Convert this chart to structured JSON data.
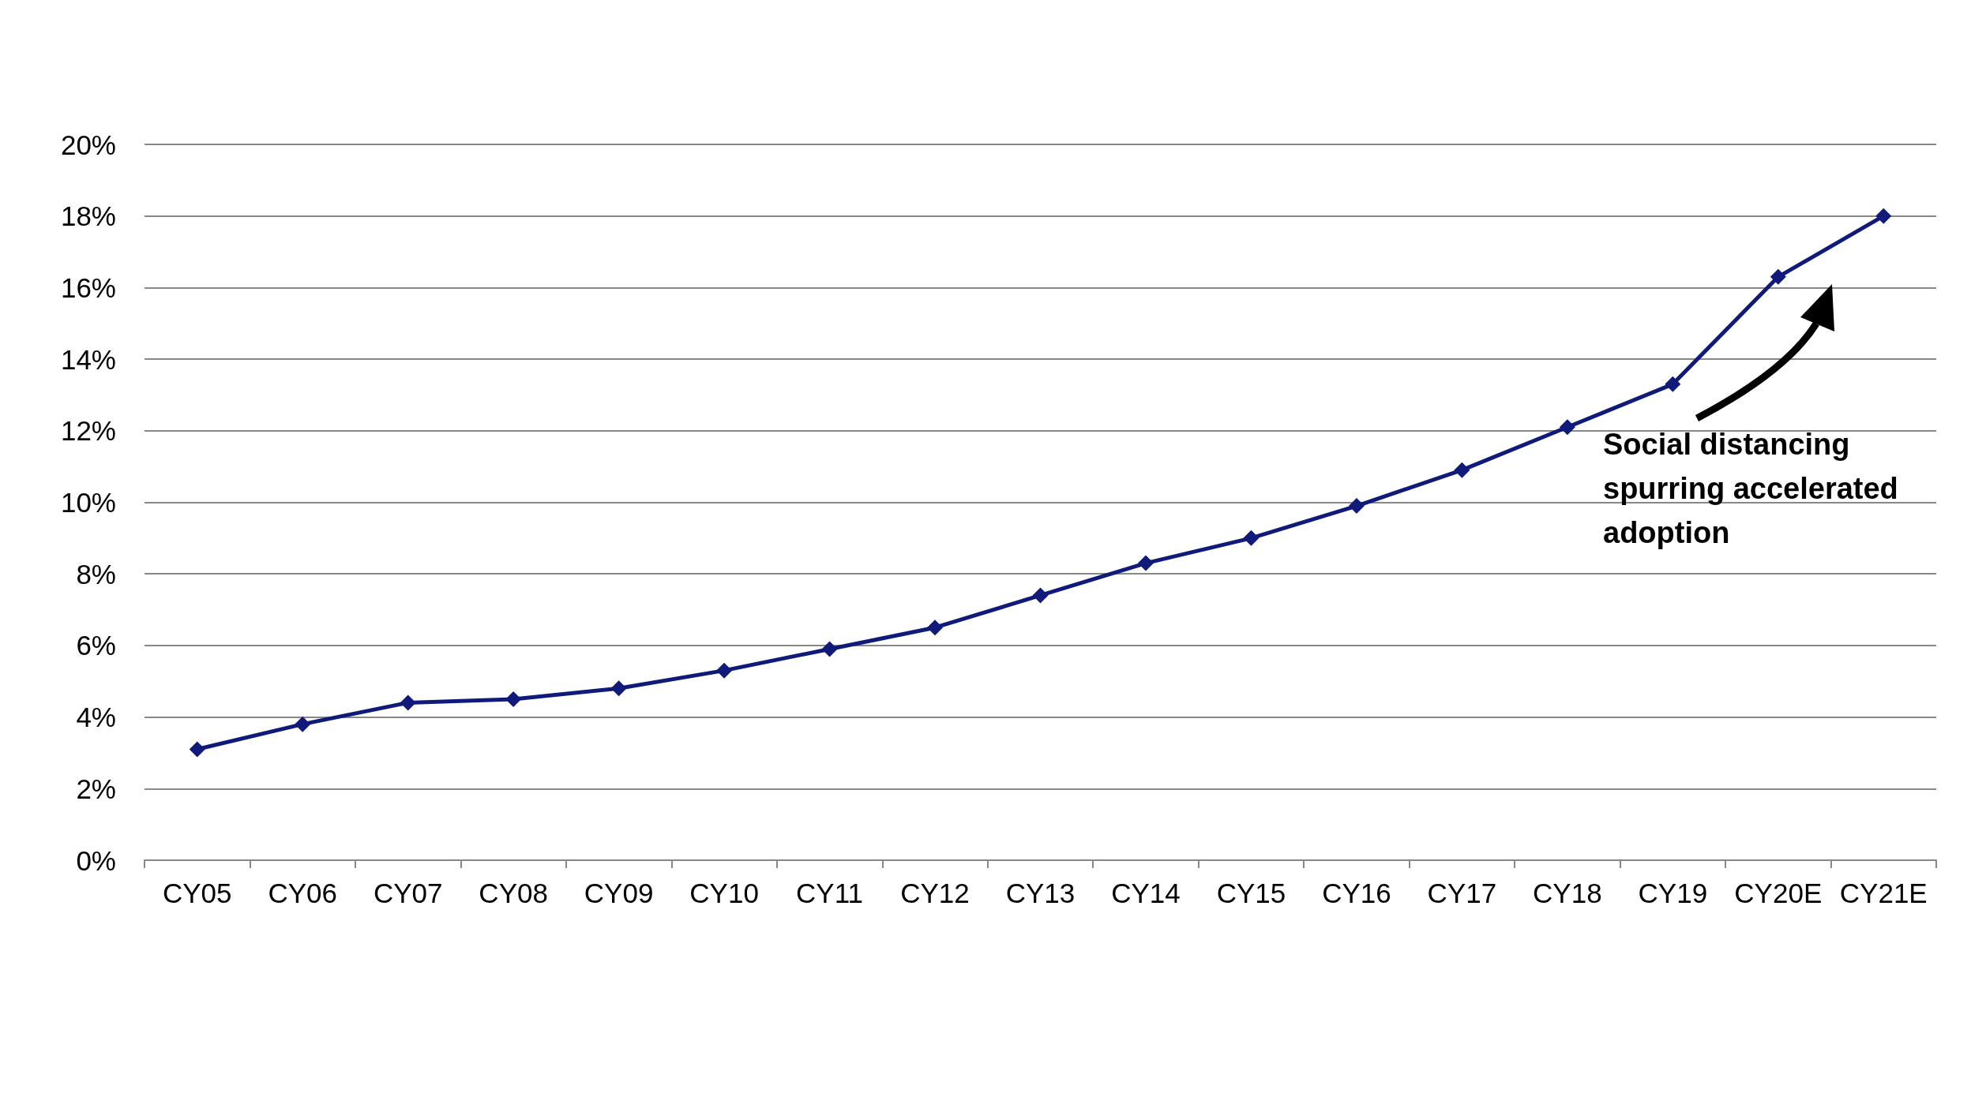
{
  "chart_data": {
    "type": "line",
    "categories": [
      "CY05",
      "CY06",
      "CY07",
      "CY08",
      "CY09",
      "CY10",
      "CY11",
      "CY12",
      "CY13",
      "CY14",
      "CY15",
      "CY16",
      "CY17",
      "CY18",
      "CY19",
      "CY20E",
      "CY21E"
    ],
    "series": [
      {
        "color": "#0f1a7a",
        "values": [
          3.1,
          3.8,
          4.4,
          4.5,
          4.8,
          5.3,
          5.9,
          6.5,
          7.4,
          8.3,
          9.0,
          9.9,
          10.9,
          12.1,
          13.3,
          16.3,
          18.0
        ]
      }
    ],
    "ylim": [
      0,
      20
    ],
    "yticks": [
      {
        "value": 0,
        "label": "0%"
      },
      {
        "value": 2,
        "label": "2%"
      },
      {
        "value": 4,
        "label": "4%"
      },
      {
        "value": 6,
        "label": "6%"
      },
      {
        "value": 8,
        "label": "8%"
      },
      {
        "value": 10,
        "label": "10%"
      },
      {
        "value": 12,
        "label": "12%"
      },
      {
        "value": 14,
        "label": "14%"
      },
      {
        "value": 16,
        "label": "16%"
      },
      {
        "value": 18,
        "label": "18%"
      },
      {
        "value": 20,
        "label": "20%"
      }
    ],
    "grid": "y",
    "marker": "diamond",
    "line_style": "solid",
    "annotations": [
      "Social distancing\nspurring accelerated\nadoption"
    ]
  }
}
